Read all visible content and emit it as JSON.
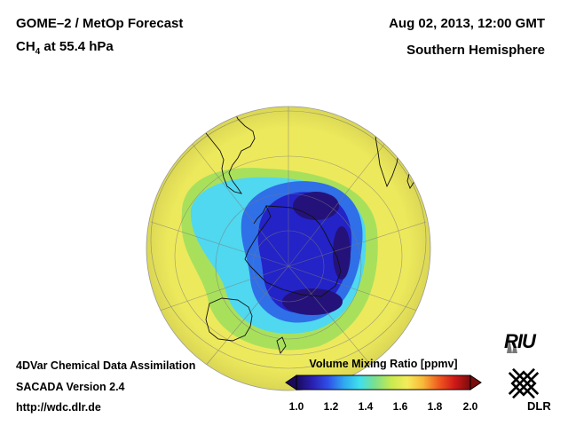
{
  "header": {
    "product": "GOME–2 / MetOp Forecast",
    "species_prefix": "CH",
    "species_sub": "4",
    "species_suffix": " at 55.4 hPa",
    "datetime": "Aug 02, 2013, 12:00 GMT",
    "region": "Southern Hemisphere"
  },
  "footer": {
    "line1": "4DVar Chemical Data Assimilation",
    "line2": "SACADA Version 2.4",
    "line3": "http://wdc.dlr.de"
  },
  "colorbar": {
    "title": "Volume Mixing Ratio [ppmv]",
    "min": 1.0,
    "max": 2.0,
    "ticks": [
      "1.0",
      "1.2",
      "1.4",
      "1.6",
      "1.8",
      "2.0"
    ],
    "colors": [
      "#1a0a5a",
      "#2a1fb0",
      "#2f4fe8",
      "#2fa8f0",
      "#40e0ec",
      "#7ee08a",
      "#c8ea50",
      "#f4ec5a",
      "#f8b838",
      "#f05a20",
      "#d01818",
      "#7a0c0c"
    ]
  },
  "map": {
    "field_colors": {
      "background": "#ede95c",
      "ring_green": "#a8e05c",
      "ring_cyan": "#4fd8f0",
      "ring_blue": "#2f6fe8",
      "core_blue": "#2323c8",
      "core_dark": "#24127a"
    }
  },
  "logos": {
    "riu": "RIU",
    "dlr": "DLR"
  }
}
